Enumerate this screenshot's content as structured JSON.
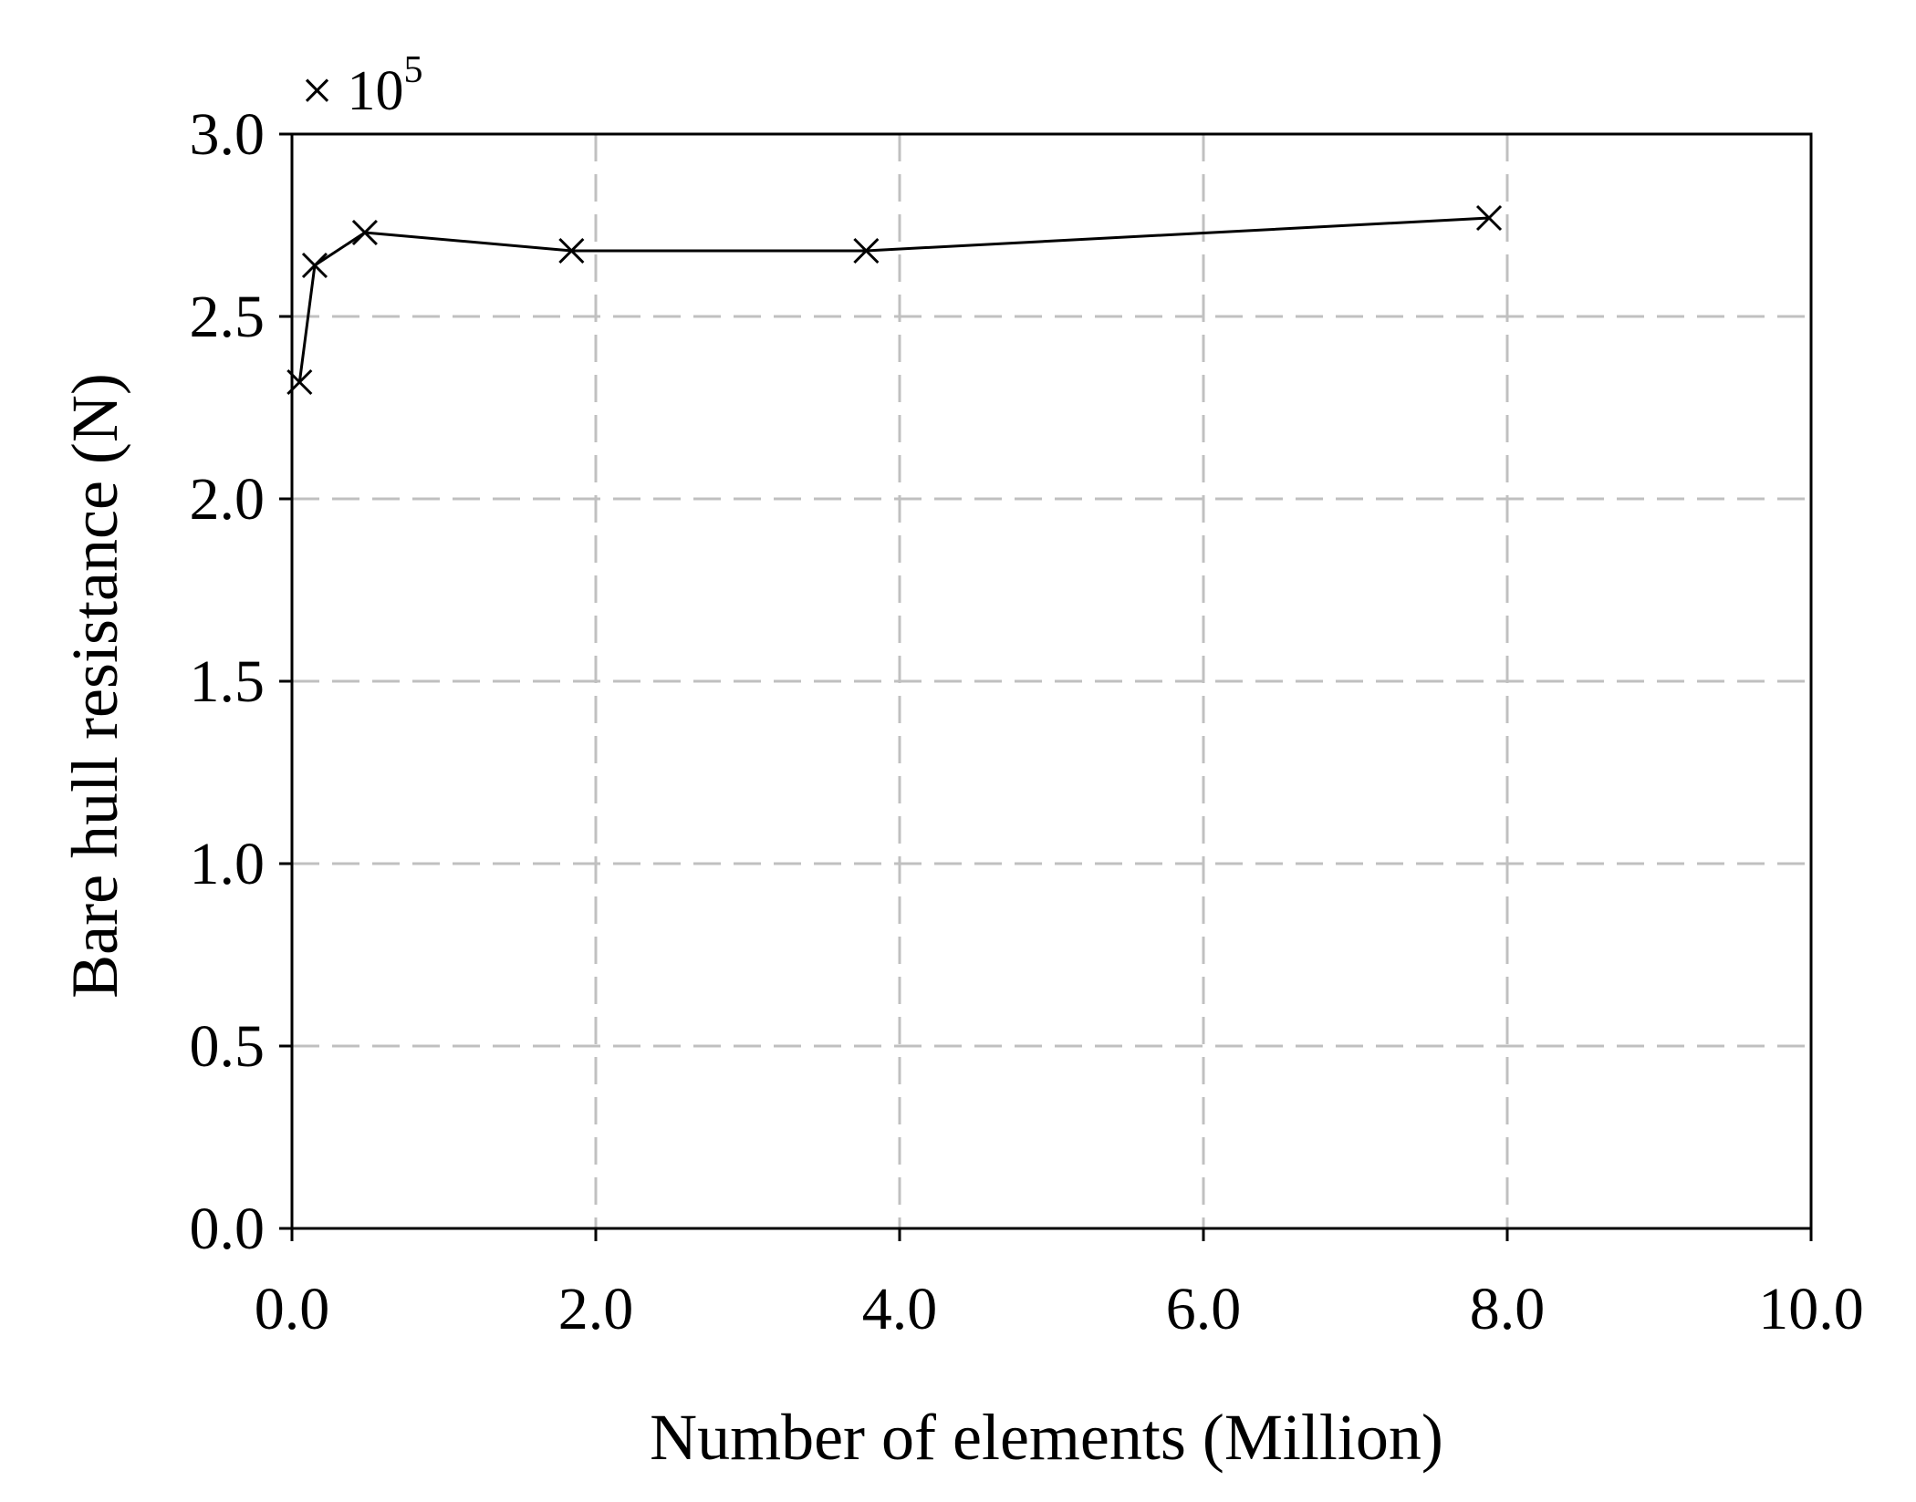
{
  "chart_data": {
    "type": "line",
    "xlabel": "Number of elements (Million)",
    "ylabel": "Bare hull resistance (N)",
    "y_multiplier": {
      "prefix": "× 10",
      "exponent": "5"
    },
    "xlim": [
      0,
      10
    ],
    "ylim": [
      0,
      3
    ],
    "xticks": [
      0,
      2,
      4,
      6,
      8,
      10
    ],
    "yticks": [
      0,
      0.5,
      1,
      1.5,
      2,
      2.5,
      3
    ],
    "xtick_labels": [
      "0.0",
      "2.0",
      "4.0",
      "6.0",
      "8.0",
      "10.0"
    ],
    "ytick_labels": [
      "0.0",
      "0.5",
      "1.0",
      "1.5",
      "2.0",
      "2.5",
      "3.0"
    ],
    "grid": true,
    "grid_style": "dashed",
    "marker": "x",
    "line_color": "#000000",
    "grid_color": "#c0c0c0",
    "series": [
      {
        "x": [
          0.05,
          0.15,
          0.48,
          1.84,
          3.78,
          7.88
        ],
        "y": [
          2.32,
          2.64,
          2.73,
          2.68,
          2.68,
          2.77
        ]
      }
    ]
  }
}
